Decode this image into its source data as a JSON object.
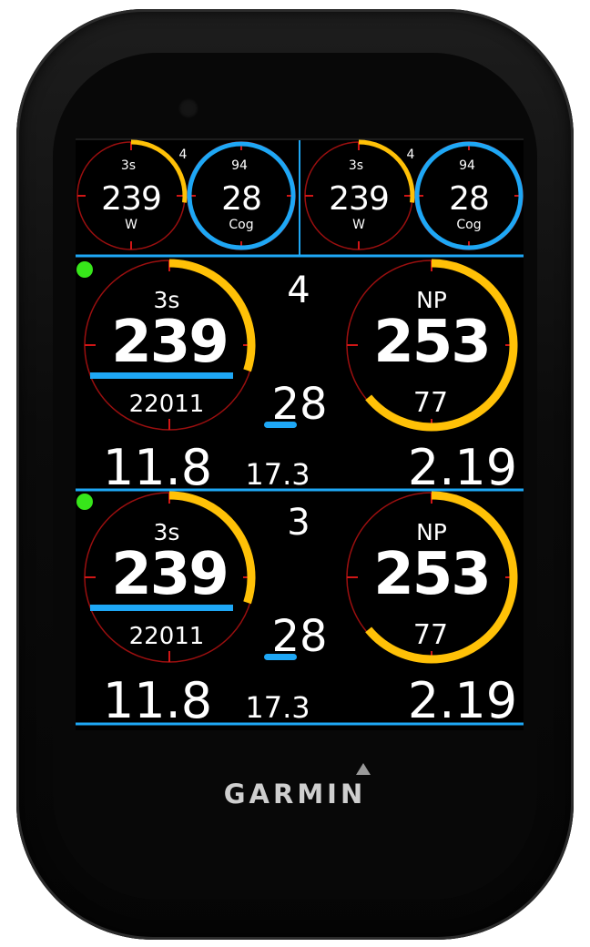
{
  "brand": {
    "name": "GARMIN"
  },
  "colors": {
    "accent_blue": "#1ea7f5",
    "accent_yellow": "#ffc107",
    "ring_red": "#9b0f0f",
    "status_green": "#37e61a",
    "background": "#000000"
  },
  "top_row": {
    "left": {
      "power_gauge": {
        "label": "3s",
        "value": "239",
        "unit": "W",
        "marker": "4",
        "fill_fraction": 0.27
      },
      "cadence_gauge": {
        "label": "94",
        "value": "28",
        "unit": "Cog",
        "fill_fraction": 1.0
      }
    },
    "right": {
      "power_gauge": {
        "label": "3s",
        "value": "239",
        "unit": "W",
        "marker": "4",
        "fill_fraction": 0.27
      },
      "cadence_gauge": {
        "label": "94",
        "value": "28",
        "unit": "Cog",
        "fill_fraction": 1.0
      }
    }
  },
  "panels": [
    {
      "lap_number": "4",
      "left_gauge": {
        "label": "3s",
        "value": "239",
        "sub": "22011",
        "fill_fraction": 0.3
      },
      "center_value": "28",
      "right_gauge": {
        "label": "NP",
        "value": "253",
        "sub": "77",
        "fill_fraction": 0.64
      },
      "bottom_left": "11.8",
      "bottom_center": "17.3",
      "bottom_right": "2.19"
    },
    {
      "lap_number": "3",
      "left_gauge": {
        "label": "3s",
        "value": "239",
        "sub": "22011",
        "fill_fraction": 0.3
      },
      "center_value": "28",
      "right_gauge": {
        "label": "NP",
        "value": "253",
        "sub": "77",
        "fill_fraction": 0.64
      },
      "bottom_left": "11.8",
      "bottom_center": "17.3",
      "bottom_right": "2.19"
    }
  ]
}
